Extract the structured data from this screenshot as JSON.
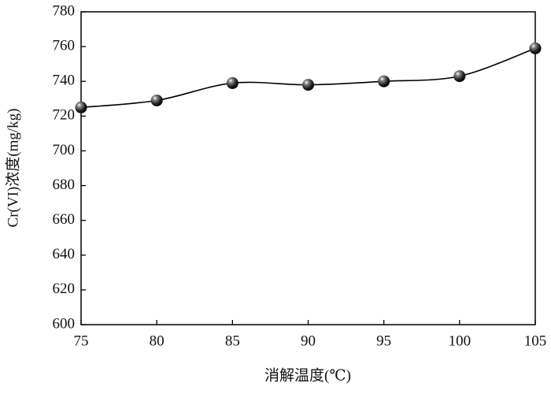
{
  "chart_data": {
    "type": "line",
    "x_label": "消解温度(℃)",
    "y_label": "Cr(VI)浓度(mg/kg)",
    "x": [
      75,
      80,
      85,
      90,
      95,
      100,
      105
    ],
    "values": [
      725,
      729,
      739,
      738,
      740,
      743,
      759
    ],
    "color": "#000000",
    "xlim": [
      75,
      105
    ],
    "xticks": [
      75,
      80,
      85,
      90,
      95,
      100,
      105
    ],
    "ylim": [
      600,
      780
    ],
    "yticks": [
      600,
      620,
      640,
      660,
      680,
      700,
      720,
      740,
      760,
      780
    ],
    "grid": false
  }
}
